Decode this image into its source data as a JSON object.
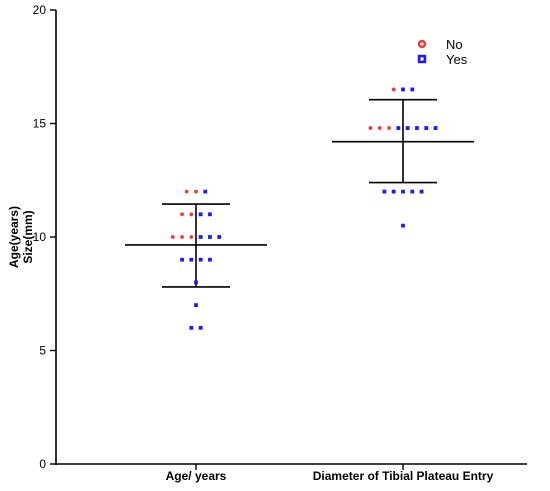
{
  "chart_data": {
    "type": "scatter",
    "ylabel_lines": [
      "Age(years)",
      "Size(mm)"
    ],
    "ylim": [
      0,
      20
    ],
    "yticks": [
      0,
      5,
      10,
      15,
      20
    ],
    "categories": [
      "Age/ years",
      "Diameter of Tibial Plateau Entry"
    ],
    "colors": {
      "No": "#ff3333",
      "Yes": "#1a1aff"
    },
    "legend": {
      "placement": "top-right",
      "entries": [
        "No",
        "Yes"
      ]
    },
    "series": [
      {
        "name": "No",
        "points": [
          {
            "category": 0,
            "y": 12
          },
          {
            "category": 0,
            "y": 12
          },
          {
            "category": 0,
            "y": 11
          },
          {
            "category": 0,
            "y": 11
          },
          {
            "category": 0,
            "y": 10
          },
          {
            "category": 0,
            "y": 10
          },
          {
            "category": 0,
            "y": 10
          },
          {
            "category": 1,
            "y": 16.5
          },
          {
            "category": 1,
            "y": 14.8
          },
          {
            "category": 1,
            "y": 14.8
          },
          {
            "category": 1,
            "y": 14.8
          }
        ]
      },
      {
        "name": "Yes",
        "points": [
          {
            "category": 0,
            "y": 12
          },
          {
            "category": 0,
            "y": 11
          },
          {
            "category": 0,
            "y": 11
          },
          {
            "category": 0,
            "y": 10
          },
          {
            "category": 0,
            "y": 10
          },
          {
            "category": 0,
            "y": 10
          },
          {
            "category": 0,
            "y": 9
          },
          {
            "category": 0,
            "y": 9
          },
          {
            "category": 0,
            "y": 9
          },
          {
            "category": 0,
            "y": 9
          },
          {
            "category": 0,
            "y": 8
          },
          {
            "category": 0,
            "y": 7
          },
          {
            "category": 0,
            "y": 6
          },
          {
            "category": 0,
            "y": 6
          },
          {
            "category": 1,
            "y": 16.5
          },
          {
            "category": 1,
            "y": 16.5
          },
          {
            "category": 1,
            "y": 14.8
          },
          {
            "category": 1,
            "y": 14.8
          },
          {
            "category": 1,
            "y": 14.8
          },
          {
            "category": 1,
            "y": 14.8
          },
          {
            "category": 1,
            "y": 14.8
          },
          {
            "category": 1,
            "y": 12
          },
          {
            "category": 1,
            "y": 12
          },
          {
            "category": 1,
            "y": 12
          },
          {
            "category": 1,
            "y": 12
          },
          {
            "category": 1,
            "y": 12
          },
          {
            "category": 1,
            "y": 10.5
          }
        ]
      }
    ],
    "summary": [
      {
        "category": 0,
        "mean": 9.65,
        "upper": 11.45,
        "lower": 7.8
      },
      {
        "category": 1,
        "mean": 14.2,
        "upper": 16.05,
        "lower": 12.4
      }
    ]
  }
}
